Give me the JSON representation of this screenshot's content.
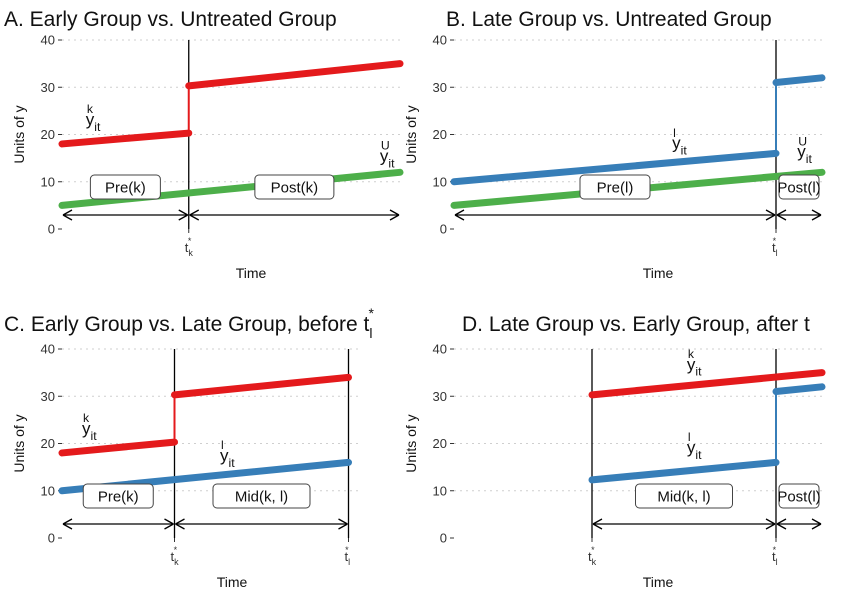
{
  "chart_data": [
    {
      "type": "line",
      "title": "A. Early Group vs. Untreated Group",
      "xlabel": "Time",
      "ylabel": "Units of y",
      "ylim": [
        0,
        40
      ],
      "yticks": [
        "0",
        "10",
        "20",
        "30",
        "40"
      ],
      "grid": "horizontal dotted",
      "xticks": [
        {
          "x": 0.375,
          "base": "t",
          "sub": "k",
          "sup": "*"
        }
      ],
      "vlines": [
        0.375
      ],
      "series": [
        {
          "segments": [
            [
              [
                0,
                18
              ],
              [
                0.375,
                20.3
              ]
            ],
            [
              [
                0.375,
                30.3
              ],
              [
                1,
                35
              ]
            ]
          ],
          "color": "#e41a1c",
          "label": {
            "base": "y",
            "sub": "it",
            "sup": "k",
            "x": 0.1,
            "y": 22
          }
        },
        {
          "segments": [
            [
              [
                0,
                5
              ],
              [
                1,
                12
              ]
            ]
          ],
          "color": "#4daf4a",
          "label": {
            "base": "y",
            "sub": "it",
            "sup": "U",
            "x": 0.97,
            "y": 14.3
          }
        }
      ],
      "periods": [
        {
          "label": "Pre(k)",
          "x0": 0,
          "x1": 0.375
        },
        {
          "label": "Post(k)",
          "x0": 0.375,
          "x1": 1
        }
      ]
    },
    {
      "type": "line",
      "title": "B. Late Group vs. Untreated Group",
      "xlabel": "Time",
      "ylabel": "Units of y",
      "ylim": [
        0,
        40
      ],
      "yticks": [
        "0",
        "10",
        "20",
        "30",
        "40"
      ],
      "grid": "horizontal dotted",
      "xticks": [
        {
          "x": 0.875,
          "base": "t",
          "sub": "l",
          "sup": "*"
        }
      ],
      "vlines": [
        0.875
      ],
      "series": [
        {
          "segments": [
            [
              [
                0,
                10
              ],
              [
                0.875,
                16
              ]
            ],
            [
              [
                0.875,
                31
              ],
              [
                1,
                32
              ]
            ]
          ],
          "color": "#377eb8",
          "label": {
            "base": "y",
            "sub": "it",
            "sup": "l",
            "x": 0.62,
            "y": 17
          }
        },
        {
          "segments": [
            [
              [
                0,
                5
              ],
              [
                1,
                12
              ]
            ]
          ],
          "color": "#4daf4a",
          "label": {
            "base": "y",
            "sub": "it",
            "sup": "U",
            "x": 0.96,
            "y": 15.2
          }
        }
      ],
      "periods": [
        {
          "label": "Pre(l)",
          "x0": 0,
          "x1": 0.875
        },
        {
          "label": "Post(l)",
          "x0": 0.875,
          "x1": 1
        }
      ]
    },
    {
      "type": "line",
      "title": "C. Early Group vs. Late Group, before t",
      "title_sub": "l",
      "title_sup": "*",
      "xlabel": "Time",
      "ylabel": "Units of y",
      "ylim": [
        0,
        40
      ],
      "yticks": [
        "0",
        "10",
        "20",
        "30",
        "40"
      ],
      "grid": "horizontal dotted",
      "xticks": [
        {
          "x": 0.375,
          "base": "t",
          "sub": "k",
          "sup": "*"
        },
        {
          "x": 0.955,
          "base": "t",
          "sub": "l",
          "sup": "*"
        }
      ],
      "vlines": [
        0.375,
        0.955
      ],
      "series": [
        {
          "segments": [
            [
              [
                0,
                18
              ],
              [
                0.375,
                20.3
              ]
            ],
            [
              [
                0.375,
                30.3
              ],
              [
                0.955,
                34
              ]
            ]
          ],
          "color": "#e41a1c",
          "label": {
            "base": "y",
            "sub": "it",
            "sup": "k",
            "x": 0.1,
            "y": 22
          }
        },
        {
          "segments": [
            [
              [
                0,
                10
              ],
              [
                0.955,
                16
              ]
            ]
          ],
          "color": "#377eb8",
          "label": {
            "base": "y",
            "sub": "it",
            "sup": "l",
            "x": 0.56,
            "y": 16.3
          }
        }
      ],
      "periods": [
        {
          "label": "Pre(k)",
          "x0": 0,
          "x1": 0.375
        },
        {
          "label": "Mid(k, l)",
          "x0": 0.375,
          "x1": 0.955
        }
      ]
    },
    {
      "type": "line",
      "title": "D. Late Group vs. Early Group, after t",
      "xlabel": "Time",
      "ylabel": "Units of y",
      "ylim": [
        0,
        40
      ],
      "yticks": [
        "0",
        "10",
        "20",
        "30",
        "40"
      ],
      "grid": "horizontal dotted",
      "xticks": [
        {
          "x": 0.375,
          "base": "t",
          "sub": "k",
          "sup": "*"
        },
        {
          "x": 0.875,
          "base": "t",
          "sub": "l",
          "sup": "*"
        }
      ],
      "vlines": [
        0.375,
        0.875
      ],
      "series": [
        {
          "segments": [
            [
              [
                0.375,
                30.3
              ],
              [
                1,
                35
              ]
            ]
          ],
          "color": "#e41a1c",
          "label": {
            "base": "y",
            "sub": "it",
            "sup": "k",
            "x": 0.66,
            "y": 35.6
          }
        },
        {
          "segments": [
            [
              [
                0.375,
                12.3
              ],
              [
                0.875,
                16
              ]
            ],
            [
              [
                0.875,
                31
              ],
              [
                1,
                32
              ]
            ]
          ],
          "color": "#377eb8",
          "label": {
            "base": "y",
            "sub": "it",
            "sup": "l",
            "x": 0.66,
            "y": 18
          }
        }
      ],
      "periods": [
        {
          "label": "Mid(k, l)",
          "x0": 0.375,
          "x1": 0.875
        },
        {
          "label": "Post(l)",
          "x0": 0.875,
          "x1": 1
        }
      ]
    }
  ]
}
